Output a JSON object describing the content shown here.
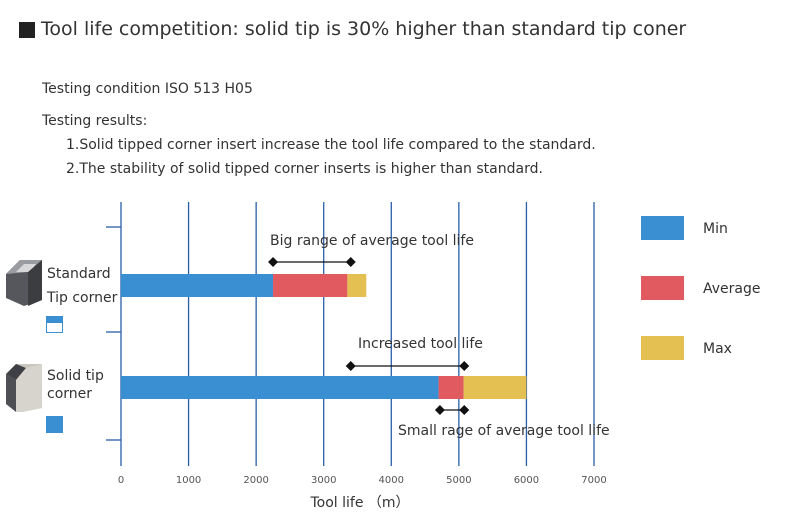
{
  "header": {
    "title": "Tool life competition: solid tip is 30% higher than standard tip coner"
  },
  "intro": {
    "condition": "Testing condition ISO 513 H05",
    "results_heading": "Testing results:",
    "results": [
      "1.Solid tipped corner insert increase the tool life compared to the standard.",
      "2.The stability of solid tipped corner inserts is higher than standard."
    ]
  },
  "rows": [
    {
      "label_line1": "Standard",
      "label_line2": "Tip corner"
    },
    {
      "label_line1": "Solid tip",
      "label_line2": "corner"
    }
  ],
  "colors": {
    "min": "#3a8fd3",
    "average": "#e05a60",
    "max": "#e4bf51",
    "gridline": "#2a5fa8",
    "text": "#333333"
  },
  "chart_data": {
    "type": "bar",
    "orientation": "horizontal",
    "stacked": true,
    "categories": [
      "Standard Tip corner",
      "Solid tip corner"
    ],
    "series": [
      {
        "name": "Min",
        "values": [
          2250,
          4700
        ]
      },
      {
        "name": "Average",
        "values": [
          1100,
          370
        ]
      },
      {
        "name": "Max",
        "values": [
          280,
          930
        ]
      }
    ],
    "xlabel": "Tool life （m）",
    "xlim": [
      0,
      7000
    ],
    "xticks": [
      0,
      1000,
      2000,
      3000,
      4000,
      5000,
      6000,
      7000
    ],
    "grid": true,
    "legend_position": "right",
    "annotations": [
      {
        "text": "Big range of average tool life",
        "from": 2250,
        "to": 3400,
        "row": 0
      },
      {
        "text": "Increased tool life",
        "from": 3400,
        "to": 5080,
        "row": 1
      },
      {
        "text": "Small rage of average tool life",
        "from": 4720,
        "to": 5080,
        "row": 1
      }
    ]
  }
}
